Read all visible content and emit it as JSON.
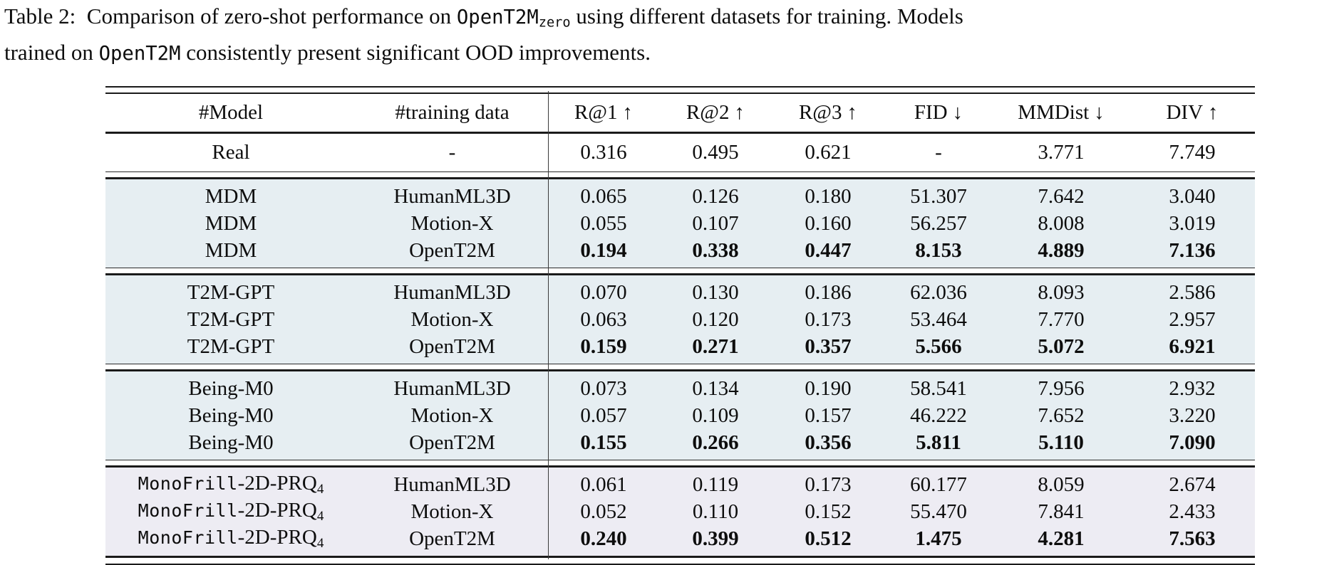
{
  "colors": {
    "group_bg_blue": "#e6eef2",
    "group_bg_lavender": "#edecf3",
    "rule_color": "#1a1a1a",
    "text_color": "#0d0d0d",
    "page_bg": "#ffffff"
  },
  "caption": {
    "label": "Table 2: ",
    "seg1": " Comparison of zero-shot performance on ",
    "code1": "OpenT2M",
    "sub1": "zero",
    "seg2": " using different datasets for training. Models",
    "line2_pre": "trained on ",
    "code2": "OpenT2M",
    "line2_post": " consistently present significant OOD improvements."
  },
  "table": {
    "columns": [
      {
        "label": "#Model"
      },
      {
        "label": "#training data"
      },
      {
        "label": "R@1",
        "arrow": "↑"
      },
      {
        "label": "R@2",
        "arrow": "↑"
      },
      {
        "label": "R@3",
        "arrow": "↑"
      },
      {
        "label": "FID",
        "arrow": "↓"
      },
      {
        "label": "MMDist",
        "arrow": "↓"
      },
      {
        "label": "DIV",
        "arrow": "↑"
      }
    ],
    "real": [
      "Real",
      "-",
      "0.316",
      "0.495",
      "0.621",
      "-",
      "3.771",
      "7.749"
    ],
    "groups": [
      {
        "bg": "#e6eef2",
        "rows": [
          {
            "model": "MDM",
            "train": "HumanML3D",
            "vals": [
              "0.065",
              "0.126",
              "0.180",
              "51.307",
              "7.642",
              "3.040"
            ]
          },
          {
            "model": "MDM",
            "train": "Motion-X",
            "vals": [
              "0.055",
              "0.107",
              "0.160",
              "56.257",
              "8.008",
              "3.019"
            ]
          },
          {
            "model": "MDM",
            "train": "OpenT2M",
            "vals": [
              "0.194",
              "0.338",
              "0.447",
              "8.153",
              "4.889",
              "7.136"
            ]
          }
        ]
      },
      {
        "bg": "#e6eef2",
        "rows": [
          {
            "model": "T2M-GPT",
            "train": "HumanML3D",
            "vals": [
              "0.070",
              "0.130",
              "0.186",
              "62.036",
              "8.093",
              "2.586"
            ]
          },
          {
            "model": "T2M-GPT",
            "train": "Motion-X",
            "vals": [
              "0.063",
              "0.120",
              "0.173",
              "53.464",
              "7.770",
              "2.957"
            ]
          },
          {
            "model": "T2M-GPT",
            "train": "OpenT2M",
            "vals": [
              "0.159",
              "0.271",
              "0.357",
              "5.566",
              "5.072",
              "6.921"
            ]
          }
        ]
      },
      {
        "bg": "#e6eef2",
        "rows": [
          {
            "model": "Being-M0",
            "train": "HumanML3D",
            "vals": [
              "0.073",
              "0.134",
              "0.190",
              "58.541",
              "7.956",
              "2.932"
            ]
          },
          {
            "model": "Being-M0",
            "train": "Motion-X",
            "vals": [
              "0.057",
              "0.109",
              "0.157",
              "46.222",
              "7.652",
              "3.220"
            ]
          },
          {
            "model": "Being-M0",
            "train": "OpenT2M",
            "vals": [
              "0.155",
              "0.266",
              "0.356",
              "5.811",
              "5.110",
              "7.090"
            ]
          }
        ]
      },
      {
        "bg": "#edecf3",
        "rows": [
          {
            "model_mono": "MonoFrill",
            "model_serif": "-2D-PRQ",
            "model_sub": "4",
            "train": "HumanML3D",
            "vals": [
              "0.061",
              "0.119",
              "0.173",
              "60.177",
              "8.059",
              "2.674"
            ]
          },
          {
            "model_mono": "MonoFrill",
            "model_serif": "-2D-PRQ",
            "model_sub": "4",
            "train": "Motion-X",
            "vals": [
              "0.052",
              "0.110",
              "0.152",
              "55.470",
              "7.841",
              "2.433"
            ]
          },
          {
            "model_mono": "MonoFrill",
            "model_serif": "-2D-PRQ",
            "model_sub": "4",
            "train": "OpenT2M",
            "vals": [
              "0.240",
              "0.399",
              "0.512",
              "1.475",
              "4.281",
              "7.563"
            ]
          }
        ]
      }
    ]
  }
}
